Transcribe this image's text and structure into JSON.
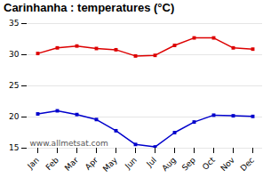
{
  "chart_data": {
    "type": "line",
    "title": "Carinhanha : temperatures (°C)",
    "categories": [
      "Jan",
      "Feb",
      "Mar",
      "Apr",
      "May",
      "Jun",
      "Jul",
      "Aug",
      "Sep",
      "Oct",
      "Nov",
      "Dec"
    ],
    "series": [
      {
        "color": "#dd0000",
        "values": [
          30.2,
          31.1,
          31.4,
          31.0,
          30.8,
          29.8,
          29.9,
          31.5,
          32.7,
          32.7,
          31.1,
          30.9
        ]
      },
      {
        "color": "#0000cc",
        "values": [
          20.5,
          21.0,
          20.4,
          19.6,
          17.8,
          15.6,
          15.2,
          17.5,
          19.2,
          20.3,
          20.2,
          20.1
        ]
      }
    ],
    "marker": "square",
    "ylim": [
      15,
      35
    ],
    "yticks": [
      15,
      20,
      25,
      30,
      35
    ],
    "grid": true,
    "annotation": "www.allmetsat.com"
  }
}
